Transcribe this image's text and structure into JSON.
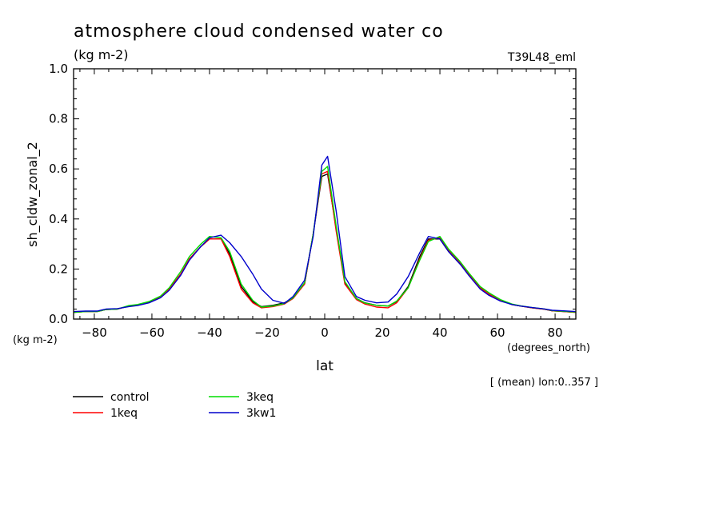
{
  "header": {
    "title": "atmosphere cloud condensed water co",
    "units": "(kg m-2)",
    "run_id": "T39L48_eml"
  },
  "annotations": {
    "y_unit_label": "(kg m-2)",
    "x_unit_label": "(degrees_north)",
    "mean_note": "[ (mean) lon:0..357 ]"
  },
  "chart_data": {
    "type": "line",
    "xlabel": "lat",
    "ylabel": "sh_cldw_zonal_2",
    "xlim": [
      -87.2,
      87.2
    ],
    "ylim": [
      0,
      1.0
    ],
    "x_ticks": [
      -80,
      -60,
      -40,
      -20,
      0,
      20,
      40,
      60,
      80
    ],
    "y_ticks": [
      0.0,
      0.2,
      0.4,
      0.6,
      0.8,
      1.0
    ],
    "x_tick_labels": [
      "−80",
      "−60",
      "−40",
      "−20",
      "0",
      "20",
      "40",
      "60",
      "80"
    ],
    "y_tick_labels": [
      "0.0",
      "0.2",
      "0.4",
      "0.6",
      "0.8",
      "1.0"
    ],
    "grid": false,
    "legend_position": "below",
    "x": [
      -87,
      -83,
      -79,
      -76,
      -72,
      -68,
      -65,
      -61,
      -57,
      -54,
      -50,
      -47,
      -43,
      -40,
      -36,
      -33,
      -29,
      -25,
      -22,
      -18,
      -14,
      -11,
      -7,
      -4,
      -1,
      1,
      4,
      7,
      11,
      14,
      18,
      22,
      25,
      29,
      33,
      36,
      40,
      43,
      47,
      50,
      54,
      57,
      61,
      65,
      68,
      72,
      76,
      79,
      83,
      87
    ],
    "series": [
      {
        "name": "control",
        "color": "#000000",
        "values": [
          0.027,
          0.03,
          0.03,
          0.038,
          0.04,
          0.052,
          0.055,
          0.068,
          0.09,
          0.12,
          0.18,
          0.24,
          0.29,
          0.32,
          0.32,
          0.26,
          0.13,
          0.07,
          0.05,
          0.055,
          0.065,
          0.085,
          0.14,
          0.34,
          0.57,
          0.58,
          0.36,
          0.145,
          0.082,
          0.065,
          0.055,
          0.052,
          0.07,
          0.13,
          0.25,
          0.32,
          0.32,
          0.27,
          0.22,
          0.18,
          0.125,
          0.1,
          0.075,
          0.058,
          0.052,
          0.045,
          0.04,
          0.033,
          0.03,
          0.027
        ]
      },
      {
        "name": "1keq",
        "color": "#ff0000",
        "values": [
          0.027,
          0.03,
          0.03,
          0.038,
          0.04,
          0.052,
          0.055,
          0.068,
          0.09,
          0.12,
          0.18,
          0.24,
          0.29,
          0.32,
          0.32,
          0.25,
          0.12,
          0.065,
          0.045,
          0.05,
          0.06,
          0.082,
          0.14,
          0.34,
          0.58,
          0.59,
          0.35,
          0.14,
          0.078,
          0.06,
          0.048,
          0.045,
          0.065,
          0.125,
          0.24,
          0.315,
          0.325,
          0.275,
          0.225,
          0.18,
          0.125,
          0.1,
          0.075,
          0.058,
          0.052,
          0.045,
          0.04,
          0.033,
          0.03,
          0.027
        ]
      },
      {
        "name": "3keq",
        "color": "#00dd00",
        "values": [
          0.027,
          0.03,
          0.03,
          0.038,
          0.04,
          0.054,
          0.058,
          0.07,
          0.092,
          0.125,
          0.19,
          0.25,
          0.3,
          0.33,
          0.325,
          0.27,
          0.14,
          0.075,
          0.048,
          0.052,
          0.062,
          0.085,
          0.145,
          0.34,
          0.59,
          0.61,
          0.37,
          0.15,
          0.082,
          0.064,
          0.055,
          0.052,
          0.072,
          0.125,
          0.235,
          0.31,
          0.33,
          0.28,
          0.23,
          0.185,
          0.13,
          0.105,
          0.078,
          0.06,
          0.053,
          0.046,
          0.041,
          0.034,
          0.031,
          0.028
        ]
      },
      {
        "name": "3kw1",
        "color": "#0000cc",
        "values": [
          0.03,
          0.032,
          0.032,
          0.04,
          0.042,
          0.05,
          0.054,
          0.065,
          0.085,
          0.115,
          0.175,
          0.235,
          0.29,
          0.325,
          0.335,
          0.305,
          0.25,
          0.18,
          0.12,
          0.075,
          0.063,
          0.09,
          0.155,
          0.33,
          0.615,
          0.65,
          0.43,
          0.17,
          0.09,
          0.075,
          0.065,
          0.068,
          0.1,
          0.17,
          0.265,
          0.33,
          0.32,
          0.27,
          0.22,
          0.175,
          0.12,
          0.095,
          0.072,
          0.058,
          0.052,
          0.046,
          0.041,
          0.035,
          0.033,
          0.03
        ]
      }
    ]
  }
}
